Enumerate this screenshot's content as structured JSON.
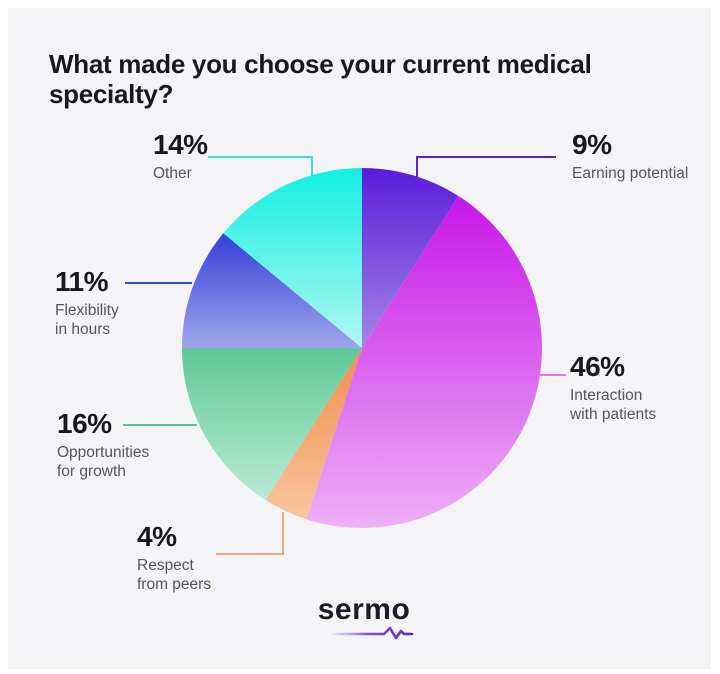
{
  "title": "What made you choose your current medical specialty?",
  "chart_data": {
    "type": "pie",
    "title": "What made you choose your current medical specialty?",
    "start_angle_deg": 0,
    "direction": "clockwise",
    "legend_position": "around-chart-with-leader-lines",
    "slices": [
      {
        "label": "Earning potential",
        "value_pct": 9,
        "percent_label": "9%",
        "color_top": "#5b1cd9",
        "color_bottom": "#a287e3",
        "line_color": "#5a22c4"
      },
      {
        "label": "Interaction with patients",
        "value_pct": 46,
        "percent_label": "46%",
        "color_top": "#c716e9",
        "color_bottom": "#edb0f6",
        "line_color": "#df7ede"
      },
      {
        "label": "Respect from peers",
        "value_pct": 4,
        "percent_label": "4%",
        "color_top": "#f28c4c",
        "color_bottom": "#f9c59e",
        "line_color": "#eca585"
      },
      {
        "label": "Opportunities for growth",
        "value_pct": 16,
        "percent_label": "16%",
        "color_top": "#5ec897",
        "color_bottom": "#bcead5",
        "line_color": "#4ec795"
      },
      {
        "label": "Flexibility in hours",
        "value_pct": 11,
        "percent_label": "11%",
        "color_top": "#333ed6",
        "color_bottom": "#a0a6ec",
        "line_color": "#3c45d0"
      },
      {
        "label": "Other",
        "value_pct": 14,
        "percent_label": "14%",
        "color_top": "#12efe2",
        "color_bottom": "#b2f7f2",
        "line_color": "#40e0d6"
      }
    ],
    "colors": {
      "canvas_background": "#f4f4f6",
      "title_text": "#17171f",
      "label_text": "#54545e",
      "logo_accent": "#6527d8"
    }
  },
  "logo": {
    "text": "sermo"
  }
}
